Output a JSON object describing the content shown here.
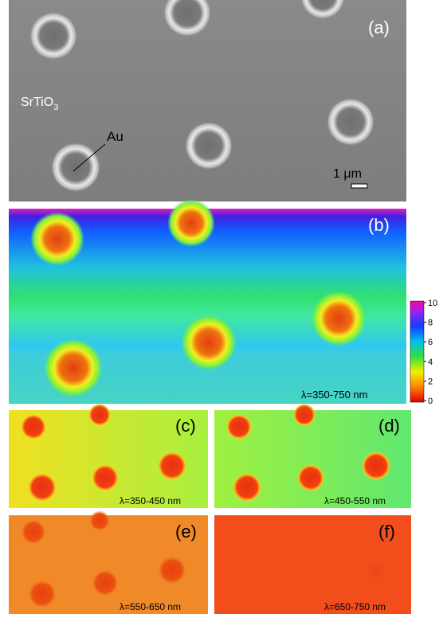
{
  "panels": [
    {
      "label": "(a)",
      "annotations": {
        "substrate": "SrTiO",
        "substrate_sub": "3",
        "particle": "Au",
        "scale": "1 μm"
      }
    },
    {
      "label": "(b)",
      "caption": "λ=350-750 nm"
    },
    {
      "label": "(c)",
      "caption": "λ=350-450 nm"
    },
    {
      "label": "(d)",
      "caption": "λ=450-550 nm"
    },
    {
      "label": "(e)",
      "caption": "λ=550-650 nm"
    },
    {
      "label": "(f)",
      "caption": "λ=650-750 nm"
    }
  ],
  "colorbar": {
    "ticks": [
      0,
      2,
      4,
      6,
      8,
      10
    ]
  }
}
